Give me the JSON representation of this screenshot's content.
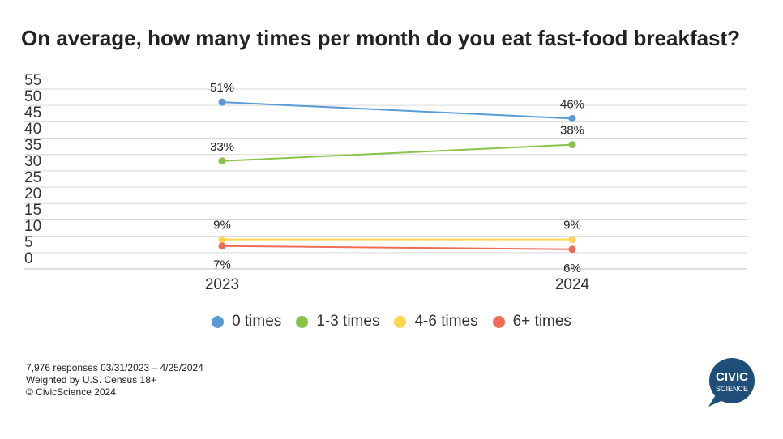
{
  "title": "On average, how many times per month do you eat fast-food breakfast?",
  "chart_data": {
    "type": "line",
    "title": "On average, how many times per month do you eat fast-food breakfast?",
    "x": [
      "2023",
      "2024"
    ],
    "ylim": [
      0,
      55
    ],
    "yticks": [
      0,
      5,
      10,
      15,
      20,
      25,
      30,
      35,
      40,
      45,
      50,
      55
    ],
    "grid": true,
    "legend_position": "bottom",
    "series": [
      {
        "name": "0 times",
        "values": [
          51,
          46
        ],
        "labels": [
          "51%",
          "46%"
        ],
        "color": "#5B9BD5"
      },
      {
        "name": "1-3 times",
        "values": [
          33,
          38
        ],
        "labels": [
          "33%",
          "38%"
        ],
        "color": "#8BC34A"
      },
      {
        "name": "4-6 times",
        "values": [
          9,
          9
        ],
        "labels": [
          "9%",
          "9%"
        ],
        "color": "#FFD54F"
      },
      {
        "name": "6+ times",
        "values": [
          7,
          6
        ],
        "labels": [
          "7%",
          "6%"
        ],
        "color": "#EF6C57"
      }
    ]
  },
  "footnote": {
    "line1": "7,976 responses 03/31/2023 – 4/25/2024",
    "line2": "Weighted by U.S. Census 18+",
    "line3": "© CivicScience 2024"
  },
  "logo": {
    "line1": "CIVIC",
    "line2": "SCIENCE",
    "color": "#1F4E79"
  }
}
